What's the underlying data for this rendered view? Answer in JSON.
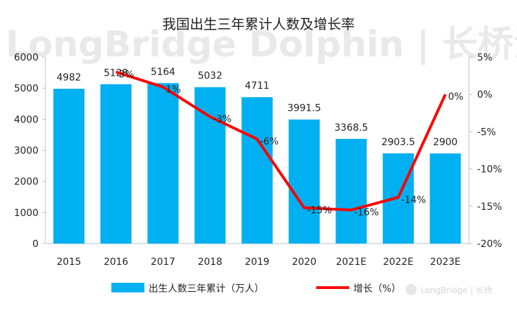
{
  "chart_data": {
    "type": "bar",
    "title": "我国出生三年累计人数及增长率",
    "categories": [
      "2015",
      "2016",
      "2017",
      "2018",
      "2019",
      "2020",
      "2021E",
      "2022E",
      "2023E"
    ],
    "series": [
      {
        "name": "出生人数三年累计（万人）",
        "type": "bar",
        "axis": "left",
        "values": [
          4982,
          5128,
          5164,
          5032,
          4711,
          3991.5,
          3368.5,
          2903.5,
          2900
        ],
        "labels": [
          "4982",
          "5128",
          "5164",
          "5032",
          "4711",
          "3991.5",
          "3368.5",
          "2903.5",
          "2900"
        ]
      },
      {
        "name": "增长（%）",
        "type": "line",
        "axis": "right",
        "values": [
          null,
          3,
          1,
          -3,
          -6,
          -15.2,
          -15.5,
          -13.8,
          0
        ],
        "labels": [
          "",
          "3%",
          "1%",
          "-3%",
          "-6%",
          "-15%",
          "-16%",
          "-14%",
          "0%"
        ]
      }
    ],
    "ylim_left": [
      0,
      6000
    ],
    "yticks_left": [
      "0",
      "1000",
      "2000",
      "3000",
      "4000",
      "5000",
      "6000"
    ],
    "ylim_right": [
      -20,
      5
    ],
    "yticks_right": [
      "5%",
      "0%",
      "-5%",
      "-10%",
      "-15%",
      "-20%"
    ],
    "legend_position": "bottom",
    "colors": {
      "bar": "#00b0f0",
      "line": "#ff0000",
      "axis": "#b0c4de"
    },
    "watermark": "LongBridge Dolphin | 长桥海豚投研",
    "logo_text": "LongBridge | 长桥"
  }
}
